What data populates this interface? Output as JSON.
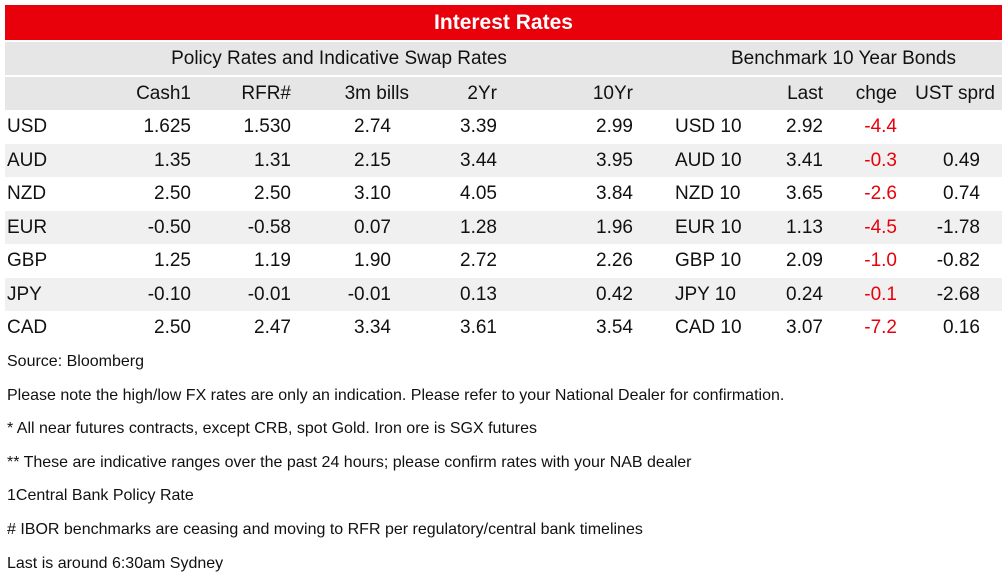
{
  "title": "Interest Rates",
  "section_headers": {
    "policy": "Policy Rates and Indicative Swap Rates",
    "bonds": "Benchmark 10 Year Bonds"
  },
  "columns": [
    "Cash1",
    "RFR#",
    "3m bills",
    "2Yr",
    "10Yr",
    "Last",
    "chge",
    "UST sprd"
  ],
  "rows": [
    {
      "ccy": "USD",
      "cash": "1.625",
      "rfr": "1.530",
      "bills": "2.74",
      "y2": "3.39",
      "y10": "2.99",
      "bond": "USD 10",
      "last": "2.92",
      "chge": "-4.4",
      "sprd": ""
    },
    {
      "ccy": "AUD",
      "cash": "1.35",
      "rfr": "1.31",
      "bills": "2.15",
      "y2": "3.44",
      "y10": "3.95",
      "bond": "AUD 10",
      "last": "3.41",
      "chge": "-0.3",
      "sprd": "0.49"
    },
    {
      "ccy": "NZD",
      "cash": "2.50",
      "rfr": "2.50",
      "bills": "3.10",
      "y2": "4.05",
      "y10": "3.84",
      "bond": "NZD 10",
      "last": "3.65",
      "chge": "-2.6",
      "sprd": "0.74"
    },
    {
      "ccy": "EUR",
      "cash": "-0.50",
      "rfr": "-0.58",
      "bills": "0.07",
      "y2": "1.28",
      "y10": "1.96",
      "bond": "EUR 10",
      "last": "1.13",
      "chge": "-4.5",
      "sprd": "-1.78"
    },
    {
      "ccy": "GBP",
      "cash": "1.25",
      "rfr": "1.19",
      "bills": "1.90",
      "y2": "2.72",
      "y10": "2.26",
      "bond": "GBP 10",
      "last": "2.09",
      "chge": "-1.0",
      "sprd": "-0.82"
    },
    {
      "ccy": "JPY",
      "cash": "-0.10",
      "rfr": "-0.01",
      "bills": "-0.01",
      "y2": "0.13",
      "y10": "0.42",
      "bond": "JPY 10",
      "last": "0.24",
      "chge": "-0.1",
      "sprd": "-2.68"
    },
    {
      "ccy": "CAD",
      "cash": "2.50",
      "rfr": "2.47",
      "bills": "3.34",
      "y2": "3.61",
      "y10": "3.54",
      "bond": "CAD 10",
      "last": "3.07",
      "chge": "-7.2",
      "sprd": "0.16"
    }
  ],
  "notes": [
    "Source: Bloomberg",
    "Please note the high/low FX rates are only an indication. Please refer to your National Dealer for confirmation.",
    "* All near futures contracts, except CRB, spot Gold.  Iron ore is SGX futures",
    "** These are indicative ranges over the past 24 hours; please confirm rates with your NAB dealer",
    "1Central Bank Policy Rate",
    "# IBOR benchmarks are ceasing and moving to RFR per regulatory/central bank timelines",
    "Last is around 6:30am Sydney"
  ],
  "colors": {
    "header_red": "#e8000b",
    "negative": "#e8000b",
    "header_grey": "#e6e6e6",
    "row_shade": "#f0f0f0"
  }
}
